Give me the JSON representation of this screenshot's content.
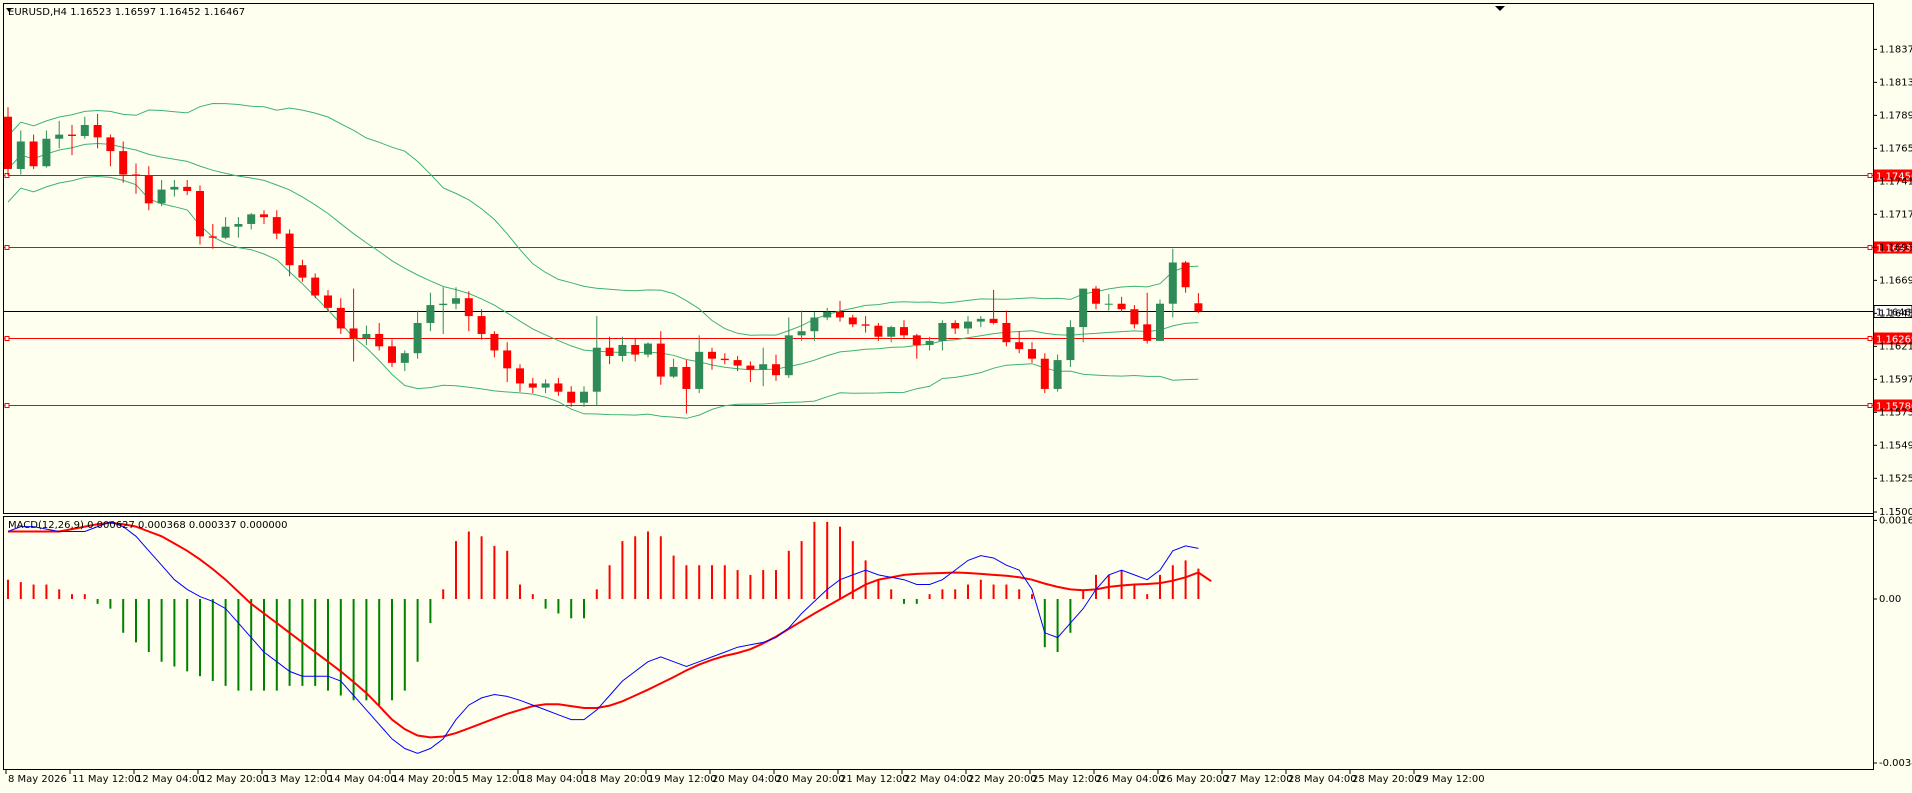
{
  "window": {
    "main_title": "EURUSD,H4  1.16523 1.16597 1.16452 1.16467",
    "macd_title": "MACD(12,26,9) 0.000627 0.000368 0.000337 0.000000"
  },
  "colors": {
    "bg": "#fffff0",
    "bull": "#2e8b57",
    "bear": "#ff0000",
    "band": "#3cb371",
    "level": "#ff0000",
    "macd_signal": "#ff0000",
    "macd_line": "#0000ff",
    "hist_pos": "#ff0000",
    "hist_neg": "#008000"
  },
  "chart_data": [
    {
      "type": "candlestick",
      "symbol": "EURUSD",
      "timeframe": "H4",
      "ylim": [
        1.15005,
        1.1861
      ],
      "y_ticks": [
        "1.18370",
        "1.18130",
        "1.17890",
        "1.17650",
        "1.17410",
        "1.17170",
        "1.16930",
        "1.16690",
        "1.16450",
        "1.16210",
        "1.15970",
        "1.15730",
        "1.15490",
        "1.15250",
        "1.15005"
      ],
      "x_ticks": [
        "8 May 2026",
        "11 May 12:00",
        "12 May 04:00",
        "12 May 20:00",
        "13 May 12:00",
        "14 May 04:00",
        "14 May 20:00",
        "15 May 12:00",
        "18 May 04:00",
        "18 May 20:00",
        "19 May 12:00",
        "20 May 04:00",
        "20 May 20:00",
        "21 May 12:00",
        "22 May 04:00",
        "22 May 20:00",
        "25 May 12:00",
        "26 May 04:00",
        "26 May 20:00",
        "27 May 12:00",
        "28 May 04:00",
        "28 May 20:00",
        "29 May 12:00"
      ],
      "levels": [
        {
          "label": "1.17456",
          "value": 1.17456
        },
        {
          "label": "1.16932",
          "value": 1.16932
        },
        {
          "label": "1.16269",
          "value": 1.16269
        },
        {
          "label": "1.15780",
          "value": 1.1578
        }
      ],
      "current_price": {
        "label": "1.16467",
        "value": 1.16467
      },
      "ohlc": [
        [
          1.1788,
          1.1795,
          1.1745,
          1.175
        ],
        [
          1.175,
          1.1778,
          1.1746,
          1.177
        ],
        [
          1.177,
          1.1775,
          1.175,
          1.1752
        ],
        [
          1.1752,
          1.1778,
          1.1751,
          1.1772
        ],
        [
          1.1772,
          1.1785,
          1.1765,
          1.1775
        ],
        [
          1.1775,
          1.1782,
          1.176,
          1.1774
        ],
        [
          1.1774,
          1.1788,
          1.1772,
          1.1782
        ],
        [
          1.1782,
          1.179,
          1.1765,
          1.1773
        ],
        [
          1.1773,
          1.1775,
          1.1752,
          1.1763
        ],
        [
          1.1763,
          1.177,
          1.174,
          1.1746
        ],
        [
          1.1746,
          1.1754,
          1.1732,
          1.1745
        ],
        [
          1.1745,
          1.1752,
          1.172,
          1.1725
        ],
        [
          1.1725,
          1.1742,
          1.1723,
          1.1735
        ],
        [
          1.1735,
          1.1742,
          1.173,
          1.1737
        ],
        [
          1.1737,
          1.1742,
          1.1731,
          1.1734
        ],
        [
          1.1734,
          1.1738,
          1.1695,
          1.1701
        ],
        [
          1.1701,
          1.171,
          1.1692,
          1.17
        ],
        [
          1.17,
          1.1715,
          1.1699,
          1.1708
        ],
        [
          1.1708,
          1.1715,
          1.17,
          1.171
        ],
        [
          1.171,
          1.1718,
          1.1706,
          1.1717
        ],
        [
          1.1717,
          1.172,
          1.171,
          1.1715
        ],
        [
          1.1715,
          1.172,
          1.1699,
          1.1703
        ],
        [
          1.1703,
          1.1706,
          1.1672,
          1.168
        ],
        [
          1.168,
          1.1684,
          1.1668,
          1.1671
        ],
        [
          1.1671,
          1.1674,
          1.1656,
          1.1658
        ],
        [
          1.1658,
          1.1662,
          1.1646,
          1.1649
        ],
        [
          1.1649,
          1.1656,
          1.163,
          1.1634
        ],
        [
          1.1634,
          1.1663,
          1.161,
          1.1627
        ],
        [
          1.1627,
          1.1636,
          1.1622,
          1.163
        ],
        [
          1.163,
          1.1638,
          1.1618,
          1.1621
        ],
        [
          1.1621,
          1.1626,
          1.1606,
          1.1609
        ],
        [
          1.1609,
          1.1618,
          1.1603,
          1.1616
        ],
        [
          1.1616,
          1.1647,
          1.1612,
          1.1638
        ],
        [
          1.1638,
          1.166,
          1.1632,
          1.1651
        ],
        [
          1.1651,
          1.1664,
          1.163,
          1.1652
        ],
        [
          1.1652,
          1.1664,
          1.1648,
          1.1656
        ],
        [
          1.1656,
          1.1661,
          1.1632,
          1.1643
        ],
        [
          1.1643,
          1.1648,
          1.1626,
          1.163
        ],
        [
          1.163,
          1.1632,
          1.1613,
          1.1618
        ],
        [
          1.1618,
          1.1624,
          1.1595,
          1.1605
        ],
        [
          1.1605,
          1.1608,
          1.1588,
          1.1594
        ],
        [
          1.1594,
          1.1598,
          1.1587,
          1.1591
        ],
        [
          1.1591,
          1.1597,
          1.1587,
          1.1594
        ],
        [
          1.1594,
          1.1598,
          1.1585,
          1.1588
        ],
        [
          1.1588,
          1.1592,
          1.1577,
          1.158
        ],
        [
          1.158,
          1.1592,
          1.1577,
          1.1588
        ],
        [
          1.1588,
          1.1643,
          1.1578,
          1.162
        ],
        [
          1.162,
          1.1628,
          1.1608,
          1.1614
        ],
        [
          1.1614,
          1.1628,
          1.161,
          1.1622
        ],
        [
          1.1622,
          1.1627,
          1.161,
          1.1615
        ],
        [
          1.1615,
          1.1624,
          1.1613,
          1.1623
        ],
        [
          1.1623,
          1.1632,
          1.1593,
          1.1599
        ],
        [
          1.1599,
          1.1612,
          1.1598,
          1.1606
        ],
        [
          1.1606,
          1.1611,
          1.1572,
          1.159
        ],
        [
          1.159,
          1.1629,
          1.1587,
          1.1617
        ],
        [
          1.1617,
          1.162,
          1.1604,
          1.1612
        ],
        [
          1.1612,
          1.1616,
          1.1608,
          1.1611
        ],
        [
          1.1611,
          1.1614,
          1.1603,
          1.1607
        ],
        [
          1.1607,
          1.161,
          1.1595,
          1.1604
        ],
        [
          1.1604,
          1.162,
          1.1592,
          1.1608
        ],
        [
          1.1608,
          1.1615,
          1.1596,
          1.16
        ],
        [
          1.16,
          1.1642,
          1.1598,
          1.1629
        ],
        [
          1.1629,
          1.1647,
          1.1625,
          1.1632
        ],
        [
          1.1632,
          1.1646,
          1.1625,
          1.1642
        ],
        [
          1.1642,
          1.1649,
          1.164,
          1.1646
        ],
        [
          1.1646,
          1.1654,
          1.1639,
          1.1642
        ],
        [
          1.1642,
          1.1644,
          1.1635,
          1.1637
        ],
        [
          1.1637,
          1.1643,
          1.1631,
          1.1636
        ],
        [
          1.1636,
          1.1638,
          1.1625,
          1.1628
        ],
        [
          1.1628,
          1.1636,
          1.1624,
          1.1635
        ],
        [
          1.1635,
          1.164,
          1.1627,
          1.1629
        ],
        [
          1.1629,
          1.163,
          1.1612,
          1.1622
        ],
        [
          1.1622,
          1.1628,
          1.1618,
          1.1625
        ],
        [
          1.1625,
          1.164,
          1.1618,
          1.1638
        ],
        [
          1.1638,
          1.164,
          1.163,
          1.1634
        ],
        [
          1.1634,
          1.1643,
          1.163,
          1.1639
        ],
        [
          1.1639,
          1.1643,
          1.1635,
          1.1641
        ],
        [
          1.1641,
          1.1662,
          1.1637,
          1.1638
        ],
        [
          1.1638,
          1.1647,
          1.1621,
          1.1624
        ],
        [
          1.1624,
          1.1632,
          1.1616,
          1.1619
        ],
        [
          1.1619,
          1.1624,
          1.1609,
          1.1612
        ],
        [
          1.1612,
          1.1616,
          1.1587,
          1.159
        ],
        [
          1.159,
          1.1615,
          1.1588,
          1.1611
        ],
        [
          1.1611,
          1.164,
          1.1606,
          1.1635
        ],
        [
          1.1635,
          1.1663,
          1.1624,
          1.1663
        ],
        [
          1.1663,
          1.1665,
          1.1648,
          1.1652
        ],
        [
          1.1652,
          1.1659,
          1.1647,
          1.1652
        ],
        [
          1.1652,
          1.1657,
          1.1646,
          1.1648
        ],
        [
          1.1648,
          1.1651,
          1.1634,
          1.1637
        ],
        [
          1.1637,
          1.166,
          1.1623,
          1.1625
        ],
        [
          1.1625,
          1.1655,
          1.1625,
          1.1652
        ],
        [
          1.1652,
          1.1692,
          1.1642,
          1.1682
        ],
        [
          1.1682,
          1.1683,
          1.166,
          1.1664
        ],
        [
          1.16523,
          1.16597,
          1.16452,
          1.16467
        ]
      ]
    },
    {
      "type": "histogram-line",
      "indicator": "MACD(12,26,9)",
      "ylim": [
        -0.0034,
        0.00163
      ],
      "y_ticks": [
        "0.00163",
        "0.00",
        "-0.00340"
      ],
      "histogram": [
        0.0004,
        0.00035,
        0.0003,
        0.0003,
        0.0002,
        0.0001,
        0.0001,
        -0.0001,
        -0.0002,
        -0.0007,
        -0.0009,
        -0.0011,
        -0.0013,
        -0.0014,
        -0.0015,
        -0.0016,
        -0.0017,
        -0.0018,
        -0.0019,
        -0.0019,
        -0.0019,
        -0.0019,
        -0.0018,
        -0.0018,
        -0.0018,
        -0.0019,
        -0.002,
        -0.0021,
        -0.0021,
        -0.0022,
        -0.0021,
        -0.0019,
        -0.0013,
        -0.0005,
        0.0002,
        0.0012,
        0.0014,
        0.0013,
        0.0011,
        0.001,
        0.0003,
        0.0001,
        -0.0002,
        -0.0003,
        -0.0004,
        -0.0004,
        0.0002,
        0.0007,
        0.0012,
        0.0013,
        0.0014,
        0.0013,
        0.0009,
        0.0007,
        0.0007,
        0.0007,
        0.0007,
        0.0006,
        0.0005,
        0.0006,
        0.0006,
        0.001,
        0.0012,
        0.0016,
        0.0016,
        0.0015,
        0.0012,
        0.0008,
        0.0004,
        0.0002,
        -0.0001,
        -0.0001,
        0.0001,
        0.0002,
        0.0002,
        0.0003,
        0.0004,
        0.0003,
        0.0003,
        0.0002,
        0.0001,
        -0.001,
        -0.0011,
        -0.0007,
        0.0002,
        0.0005,
        0.0005,
        0.0006,
        0.0003,
        0.0001,
        0.0005,
        0.0007,
        0.0008,
        0.00063
      ],
      "signal": [
        0.0014,
        0.0014,
        0.0014,
        0.0014,
        0.0014,
        0.00145,
        0.0015,
        0.00155,
        0.00158,
        0.00155,
        0.0015,
        0.0014,
        0.0013,
        0.00115,
        0.001,
        0.00082,
        0.00062,
        0.0004,
        0.00015,
        -0.0001,
        -0.0003,
        -0.0005,
        -0.0007,
        -0.0009,
        -0.0011,
        -0.0013,
        -0.0015,
        -0.00172,
        -0.00195,
        -0.00222,
        -0.0025,
        -0.0027,
        -0.00283,
        -0.00287,
        -0.00285,
        -0.00278,
        -0.00268,
        -0.00258,
        -0.00248,
        -0.00238,
        -0.0023,
        -0.00222,
        -0.00218,
        -0.00218,
        -0.00222,
        -0.00226,
        -0.00226,
        -0.00221,
        -0.00212,
        -0.002,
        -0.00188,
        -0.00175,
        -0.00162,
        -0.00148,
        -0.00136,
        -0.00126,
        -0.00118,
        -0.00112,
        -0.00104,
        -0.00092,
        -0.00078,
        -0.00062,
        -0.00046,
        -0.0003,
        -0.00015,
        0.0,
        0.00015,
        0.0003,
        0.0004,
        0.00045,
        0.0005,
        0.00052,
        0.00053,
        0.00054,
        0.00055,
        0.00054,
        0.00052,
        0.0005,
        0.00048,
        0.00045,
        0.0004,
        0.00032,
        0.00025,
        0.0002,
        0.00018,
        0.0002,
        0.00025,
        0.00028,
        0.0003,
        0.00031,
        0.00033,
        0.00038,
        0.00045,
        0.00055,
        0.00037
      ],
      "macd": [
        0.0014,
        0.0015,
        0.0015,
        0.00145,
        0.0014,
        0.0014,
        0.0014,
        0.0015,
        0.0016,
        0.0015,
        0.0013,
        0.001,
        0.0007,
        0.0004,
        0.0002,
        5e-05,
        -5e-05,
        -0.0002,
        -0.0005,
        -0.0008,
        -0.0011,
        -0.0013,
        -0.0015,
        -0.0016,
        -0.0016,
        -0.0016,
        -0.0017,
        -0.002,
        -0.0023,
        -0.0026,
        -0.0029,
        -0.0031,
        -0.0032,
        -0.0031,
        -0.0029,
        -0.0025,
        -0.0022,
        -0.00205,
        -0.00198,
        -0.00202,
        -0.0021,
        -0.0022,
        -0.0023,
        -0.0024,
        -0.0025,
        -0.0025,
        -0.0023,
        -0.002,
        -0.0017,
        -0.0015,
        -0.0013,
        -0.0012,
        -0.0013,
        -0.0014,
        -0.0013,
        -0.0012,
        -0.0011,
        -0.001,
        -0.00095,
        -0.0009,
        -0.0008,
        -0.0006,
        -0.0003,
        -5e-05,
        0.0002,
        0.0004,
        0.0005,
        0.0006,
        0.0005,
        0.00045,
        0.0004,
        0.0003,
        0.0003,
        0.0004,
        0.0006,
        0.0008,
        0.0009,
        0.00085,
        0.0007,
        0.0006,
        0.0002,
        -0.0007,
        -0.0008,
        -0.0005,
        -0.0002,
        0.0002,
        0.0005,
        0.0006,
        0.0005,
        0.0004,
        0.0006,
        0.001,
        0.0011,
        0.00105
      ]
    }
  ]
}
